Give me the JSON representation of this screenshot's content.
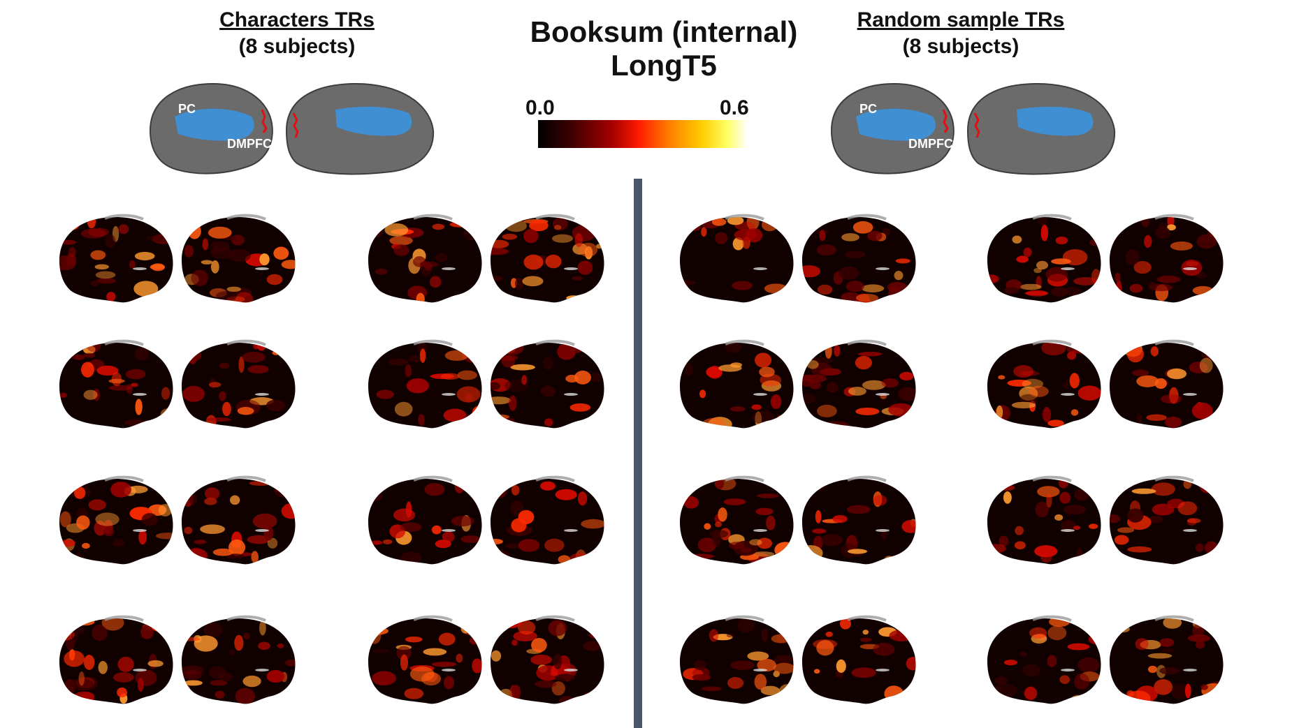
{
  "title": {
    "line1": "Booksum (internal)",
    "line2": "LongT5"
  },
  "colorbar": {
    "min_label": "0.0",
    "max_label": "0.6",
    "colormap": "hot",
    "colors": [
      "#000000",
      "#a30000",
      "#ff1a00",
      "#ff7a00",
      "#ffff60",
      "#ffffff"
    ]
  },
  "panels": [
    {
      "name": "Characters TRs",
      "subtitle": "(8 subjects)",
      "roi_labels": [
        "PC",
        "DMPFC"
      ],
      "subjects": 8
    },
    {
      "name": "Random sample TRs",
      "subtitle": "(8 subjects)",
      "roi_labels": [
        "PC",
        "DMPFC"
      ],
      "subjects": 8
    }
  ],
  "colors": {
    "roi_blue": "#3f8fd2",
    "cortex_gray": "#6b6b6b",
    "divider": "#4a5569"
  }
}
